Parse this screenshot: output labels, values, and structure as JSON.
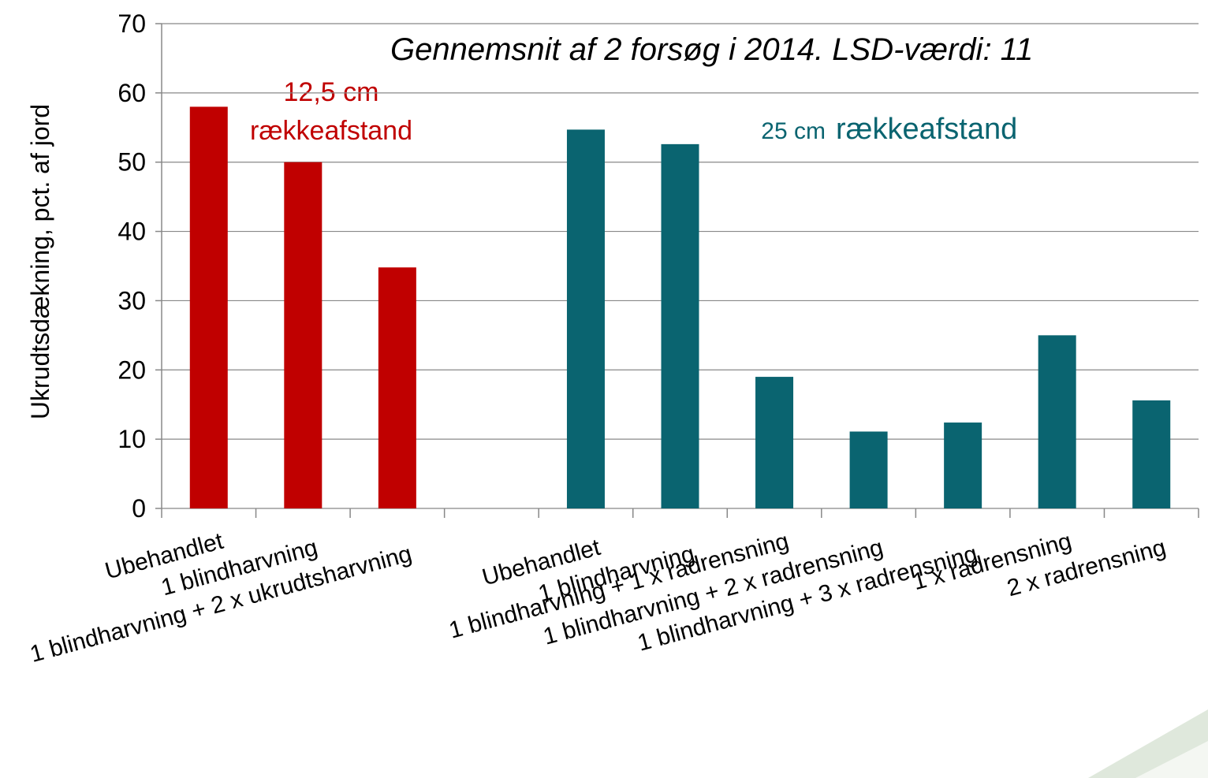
{
  "chart_data": {
    "type": "bar",
    "title": "Gennemsnit af 2 forsøg i 2014. LSD-værdi: 11",
    "y_label": "Ukrudtsdækning, pct. af jord",
    "annotations": [
      "12,5 cm",
      "rækkeafstand",
      "25 cm",
      "rækkeafstand"
    ],
    "categories": [
      "Ubehandlet",
      "1 blindharvning",
      "1 blindharvning + 2 x ukrudtsharvning",
      null,
      "Ubehandlet",
      "1 blindharvning",
      "1 blindharvning + 1 x radrensning",
      "1 blindharvning + 2 x radrensning",
      "1 blindharvning + 3 x radrensning",
      "1 x radrensning",
      "2 x radrensning"
    ],
    "values": [
      58,
      50,
      34.8,
      null,
      54.7,
      52.6,
      19,
      11.1,
      12.4,
      25,
      15.6
    ],
    "colors": [
      "#c00000",
      "#c00000",
      "#c00000",
      null,
      "#0a6470",
      "#0a6470",
      "#0a6470",
      "#0a6470",
      "#0a6470",
      "#0a6470",
      "#0a6470"
    ],
    "ylim": [
      0,
      70
    ],
    "yticks": [
      0,
      10,
      20,
      30,
      40,
      50,
      60,
      70
    ],
    "grid": true
  }
}
